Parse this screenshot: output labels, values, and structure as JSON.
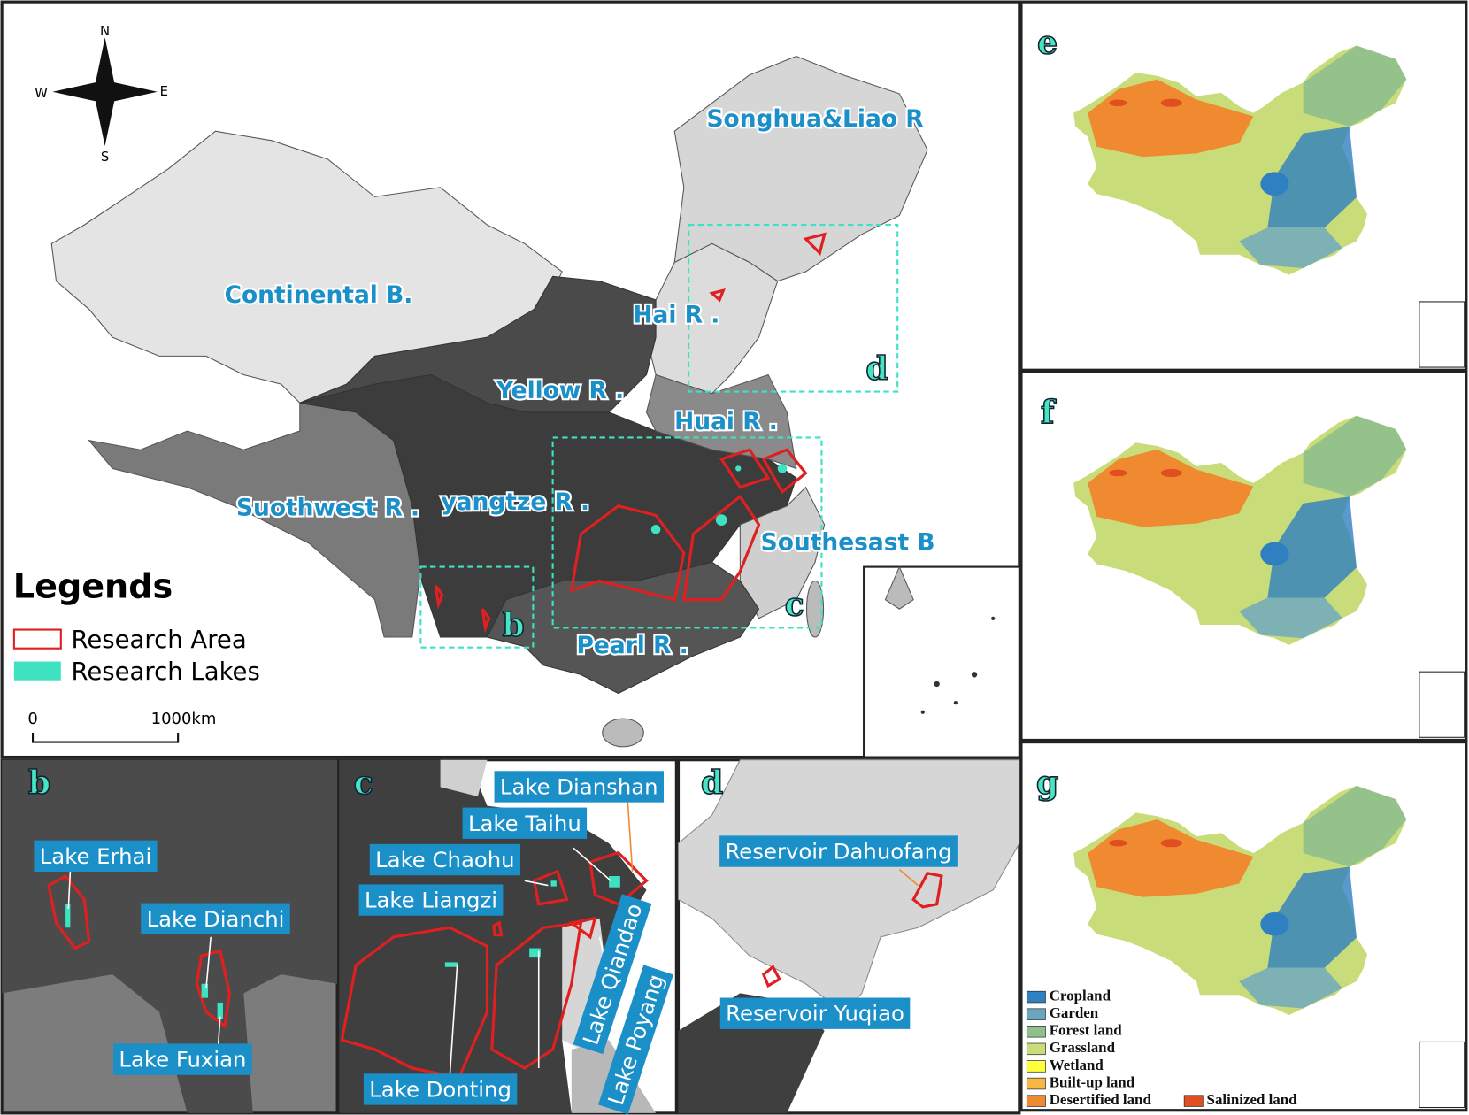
{
  "main_map": {
    "compass": {
      "north": "N",
      "south": "S",
      "west": "W",
      "east": "E"
    },
    "basins": [
      "Songhua&Liao R",
      "Continental B.",
      "Hai R .",
      "Yellow R .",
      "Huai R .",
      "Suothwest R .",
      "yangtze R .",
      "Southesast B",
      "Pearl R ."
    ],
    "inset_letters": [
      "d",
      "c",
      "b"
    ],
    "legend": {
      "title": "Legends",
      "items": [
        "Research Area",
        "Research Lakes"
      ]
    },
    "scale_bar": {
      "start": "0",
      "end": "1000km"
    }
  },
  "panel_b": {
    "letter": "b",
    "lakes": [
      "Lake Erhai",
      "Lake Dianchi",
      "Lake Fuxian"
    ]
  },
  "panel_c": {
    "letter": "c",
    "lakes": [
      "Lake Dianshan",
      "Lake Taihu",
      "Lake Chaohu",
      "Lake Liangzi",
      "Lake Donting",
      "Lake Qiandao",
      "Lake Poyang"
    ]
  },
  "panel_d": {
    "letter": "d",
    "reservoirs": [
      "Reservoir Dahuofang",
      "Reservoir Yuqiao"
    ]
  },
  "land_use_panels": {
    "letters": [
      "e",
      "f",
      "g"
    ],
    "legend": [
      {
        "label": "Cropland",
        "color": "#2f80c0"
      },
      {
        "label": "Garden",
        "color": "#6aa6c2"
      },
      {
        "label": "Forest land",
        "color": "#8fbf8c"
      },
      {
        "label": "Grassland",
        "color": "#c9dc7a"
      },
      {
        "label": "Wetland",
        "color": "#ffff3c"
      },
      {
        "label": "Built-up land",
        "color": "#f6b840"
      },
      {
        "label": "Desertified land",
        "color": "#f08a30"
      },
      {
        "label": "Salinized land",
        "color": "#e04e22"
      }
    ]
  }
}
